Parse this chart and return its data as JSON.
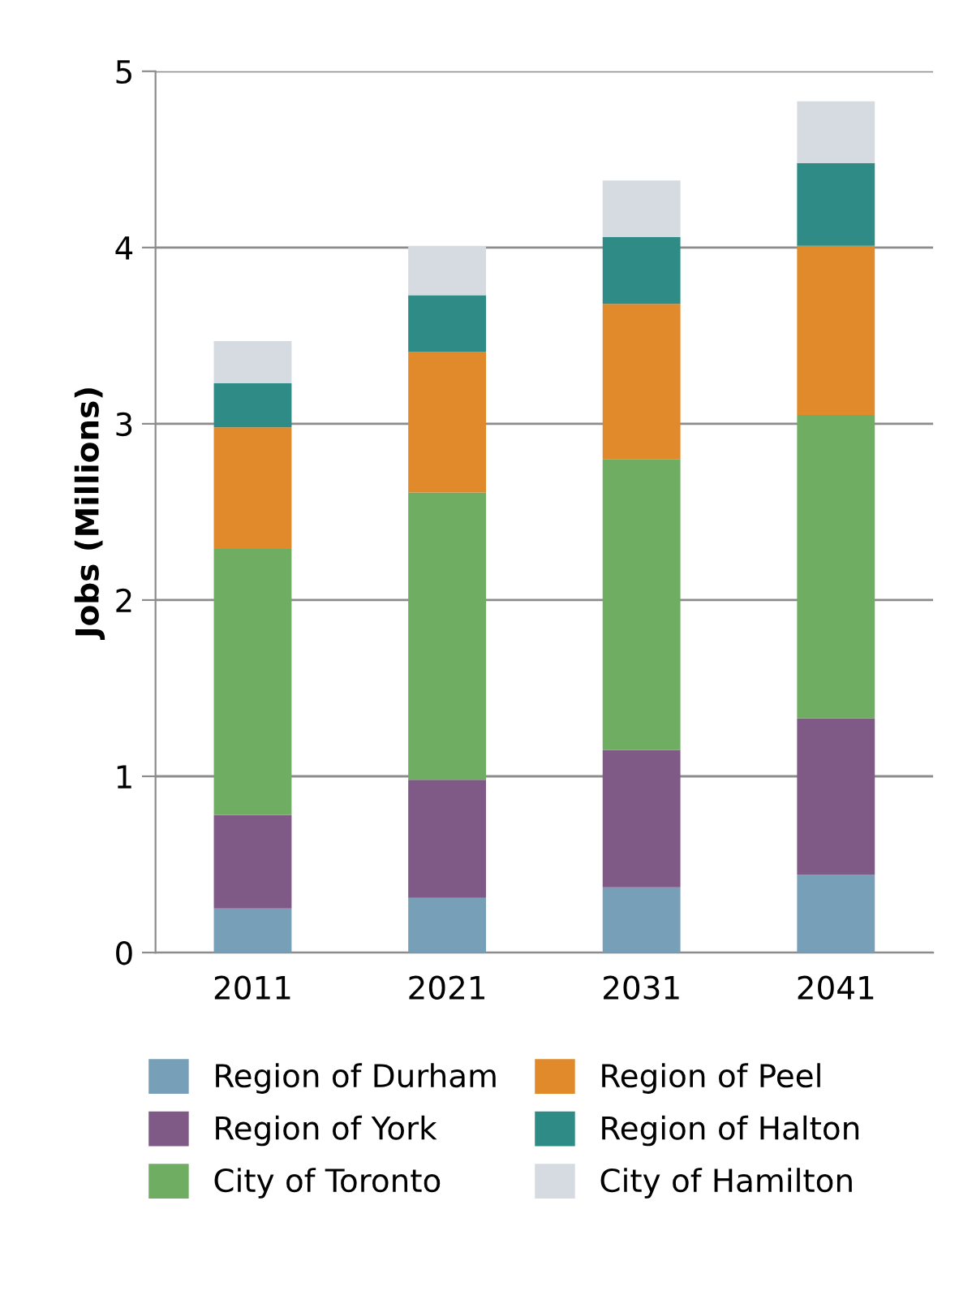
{
  "chart_data": {
    "type": "bar",
    "stacked": true,
    "ylabel": "Jobs (Millions)",
    "categories": [
      "2011",
      "2021",
      "2031",
      "2041"
    ],
    "ylim": [
      0,
      5
    ],
    "yticks": [
      0,
      1,
      2,
      3,
      4,
      5
    ],
    "grid": "y",
    "legend": "bottom",
    "series": [
      {
        "name": "Region of Durham",
        "color": "#779fb8",
        "values": [
          0.25,
          0.31,
          0.37,
          0.44
        ]
      },
      {
        "name": "Region of York",
        "color": "#7f5a87",
        "values": [
          0.53,
          0.67,
          0.78,
          0.89
        ]
      },
      {
        "name": "City of Toronto",
        "color": "#6fae62",
        "values": [
          1.51,
          1.63,
          1.65,
          1.72
        ]
      },
      {
        "name": "Region of Peel",
        "color": "#e08a2b",
        "values": [
          0.69,
          0.8,
          0.88,
          0.96
        ]
      },
      {
        "name": "Region of Halton",
        "color": "#2e8b86",
        "values": [
          0.25,
          0.32,
          0.38,
          0.47
        ]
      },
      {
        "name": "City of Hamilton",
        "color": "#d5dbe0",
        "values": [
          0.24,
          0.28,
          0.32,
          0.35
        ]
      }
    ]
  }
}
